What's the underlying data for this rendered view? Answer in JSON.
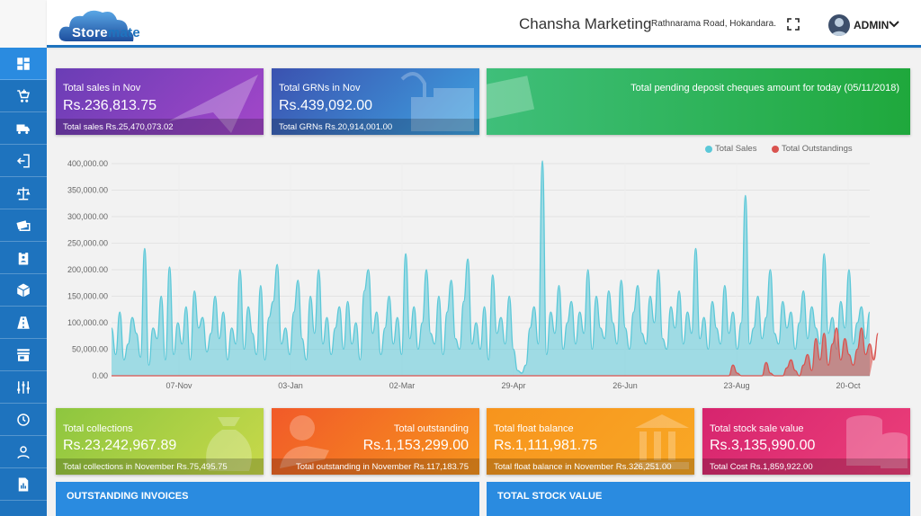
{
  "header": {
    "logo_text_a": "Store",
    "logo_text_b": "mate",
    "company": "Chansha Marketing",
    "address": "Rathnarama Road, Hokandara.",
    "user": "ADMIN"
  },
  "sidebar": {
    "items": [
      {
        "name": "dashboard-icon"
      },
      {
        "name": "add-cart-icon"
      },
      {
        "name": "truck-icon"
      },
      {
        "name": "return-icon"
      },
      {
        "name": "scale-icon"
      },
      {
        "name": "cash-icon"
      },
      {
        "name": "clipboard-icon"
      },
      {
        "name": "package-icon"
      },
      {
        "name": "road-icon"
      },
      {
        "name": "store-icon"
      },
      {
        "name": "sliders-icon"
      },
      {
        "name": "history-icon"
      },
      {
        "name": "user-icon"
      },
      {
        "name": "report-icon"
      }
    ]
  },
  "cards_top": {
    "sales": {
      "label": "Total sales in Nov",
      "value": "Rs.236,813.75",
      "foot": "Total sales Rs.25,470,073.02"
    },
    "grns": {
      "label": "Total GRNs in Nov",
      "value": "Rs.439,092.00",
      "foot": "Total GRNs Rs.20,914,001.00"
    },
    "cheques": {
      "label": "Total pending deposit cheques amount for today (05/11/2018)"
    }
  },
  "cards_bottom": {
    "collections": {
      "label": "Total collections",
      "value": "Rs.23,242,967.89",
      "foot": "Total collections in November Rs.75,495.75"
    },
    "outstanding": {
      "label": "Total outstanding",
      "value": "Rs.1,153,299.00",
      "foot": "Total outstanding in November Rs.117,183.75"
    },
    "float": {
      "label": "Total float balance",
      "value": "Rs.1,111,981.75",
      "foot": "Total float balance in November Rs.326,251.00"
    },
    "stock": {
      "label": "Total stock sale value",
      "value": "Rs.3,135,990.00",
      "foot": "Total Cost Rs.1,859,922.00"
    }
  },
  "panels": {
    "outstanding_invoices": "OUTSTANDING INVOICES",
    "total_stock_value": "TOTAL STOCK VALUE"
  },
  "colors": {
    "sales": "#5bc8d8",
    "outstandings": "#d9534f",
    "accent": "#1e73be"
  },
  "chart_data": {
    "type": "area",
    "title": "",
    "xlabel": "",
    "ylabel": "",
    "ylim": [
      0,
      400000
    ],
    "yticks": [
      "0.00",
      "50,000.00",
      "100,000.00",
      "150,000.00",
      "200,000.00",
      "250,000.00",
      "300,000.00",
      "350,000.00",
      "400,000.00"
    ],
    "xticks": [
      "07-Nov",
      "03-Jan",
      "02-Mar",
      "29-Apr",
      "26-Jun",
      "23-Aug",
      "20-Oct"
    ],
    "legend_position": "top-right",
    "grid": true,
    "series": [
      {
        "name": "Total Sales",
        "values": [
          90000,
          40000,
          120000,
          30000,
          60000,
          110000,
          80000,
          35000,
          240000,
          20000,
          90000,
          70000,
          150000,
          30000,
          205000,
          40000,
          100000,
          60000,
          130000,
          30000,
          160000,
          90000,
          110000,
          45000,
          80000,
          150000,
          70000,
          120000,
          30000,
          90000,
          60000,
          200000,
          50000,
          130000,
          80000,
          40000,
          170000,
          30000,
          110000,
          140000,
          210000,
          60000,
          90000,
          40000,
          120000,
          180000,
          70000,
          30000,
          150000,
          80000,
          200000,
          60000,
          110000,
          40000,
          90000,
          130000,
          50000,
          140000,
          60000,
          100000,
          30000,
          160000,
          200000,
          80000,
          120000,
          40000,
          90000,
          150000,
          60000,
          110000,
          40000,
          230000,
          70000,
          130000,
          50000,
          100000,
          200000,
          80000,
          60000,
          150000,
          40000,
          120000,
          180000,
          70000,
          50000,
          140000,
          220000,
          60000,
          100000,
          50000,
          130000,
          30000,
          190000,
          80000,
          110000,
          60000,
          150000,
          50000,
          10000,
          5000,
          20000,
          90000,
          130000,
          60000,
          405000,
          40000,
          120000,
          80000,
          170000,
          50000,
          100000,
          140000,
          60000,
          120000,
          80000,
          200000,
          50000,
          150000,
          90000,
          70000,
          160000,
          100000,
          60000,
          180000,
          90000,
          50000,
          120000,
          170000,
          80000,
          60000,
          150000,
          100000,
          200000,
          70000,
          50000,
          130000,
          90000,
          160000,
          60000,
          120000,
          80000,
          240000,
          70000,
          110000,
          50000,
          140000,
          90000,
          60000,
          170000,
          80000,
          120000,
          50000,
          100000,
          340000,
          60000,
          90000,
          150000,
          70000,
          110000,
          200000,
          80000,
          60000,
          140000,
          90000,
          120000,
          50000,
          100000,
          160000,
          70000,
          130000,
          90000,
          60000,
          230000,
          80000,
          110000,
          50000,
          140000,
          90000,
          200000,
          60000,
          100000,
          130000,
          70000,
          120000
        ]
      },
      {
        "name": "Total Outstandings",
        "values": [
          0,
          0,
          0,
          0,
          0,
          0,
          0,
          0,
          0,
          0,
          0,
          0,
          0,
          0,
          0,
          0,
          0,
          0,
          0,
          0,
          0,
          0,
          0,
          0,
          0,
          0,
          0,
          0,
          0,
          0,
          0,
          0,
          0,
          0,
          0,
          0,
          0,
          0,
          0,
          0,
          0,
          0,
          0,
          0,
          0,
          0,
          0,
          0,
          0,
          0,
          0,
          0,
          0,
          0,
          0,
          0,
          0,
          0,
          0,
          0,
          0,
          0,
          0,
          0,
          0,
          0,
          0,
          0,
          0,
          0,
          0,
          0,
          0,
          0,
          0,
          0,
          0,
          0,
          0,
          0,
          0,
          0,
          0,
          0,
          0,
          0,
          0,
          0,
          0,
          0,
          0,
          0,
          0,
          0,
          0,
          0,
          0,
          0,
          0,
          0,
          0,
          0,
          0,
          0,
          0,
          0,
          0,
          0,
          0,
          0,
          0,
          0,
          0,
          0,
          0,
          0,
          0,
          0,
          0,
          0,
          0,
          0,
          0,
          0,
          0,
          0,
          0,
          0,
          0,
          0,
          0,
          0,
          0,
          0,
          0,
          0,
          0,
          0,
          0,
          0,
          0,
          0,
          0,
          0,
          0,
          0,
          0,
          0,
          0,
          0,
          20000,
          5000,
          0,
          0,
          0,
          0,
          0,
          0,
          25000,
          5000,
          0,
          0,
          0,
          15000,
          30000,
          10000,
          0,
          20000,
          40000,
          10000,
          70000,
          30000,
          80000,
          20000,
          60000,
          90000,
          30000,
          70000,
          40000,
          20000,
          50000,
          90000,
          40000,
          60000,
          30000,
          80000
        ]
      }
    ]
  }
}
